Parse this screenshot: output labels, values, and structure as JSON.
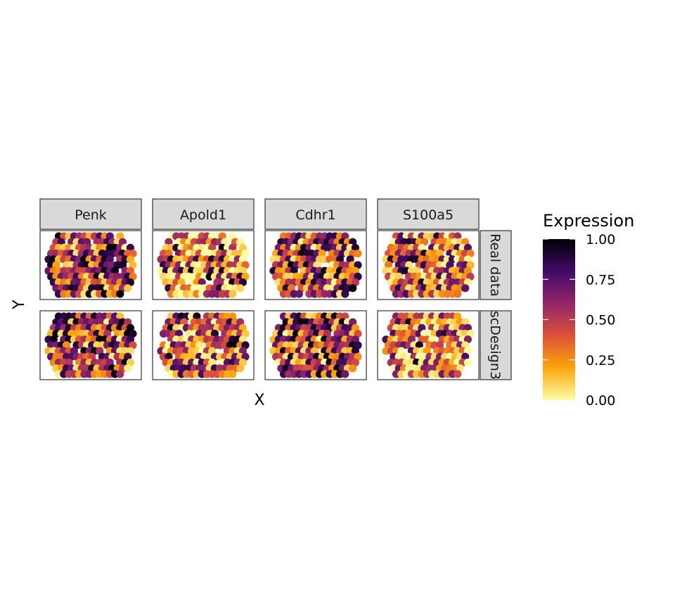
{
  "chart_data": {
    "type": "scatter",
    "facet_columns": [
      "Penk",
      "Apold1",
      "Cdhr1",
      "S100a5"
    ],
    "facet_rows": [
      "Real data",
      "scDesign3"
    ],
    "xlabel": "X",
    "ylabel": "Y",
    "legend": {
      "title": "Expression",
      "position": "right",
      "ticks": [
        "1.00",
        "0.75",
        "0.50",
        "0.25",
        "0.00"
      ],
      "range": [
        0,
        1
      ],
      "palette": [
        "#fcffa4",
        "#fca50a",
        "#dd513a",
        "#932667",
        "#420a68",
        "#000004"
      ]
    },
    "spot_grid": {
      "columns": 17,
      "rows": 11,
      "note": "values per panel are approximate, estimated from colour"
    },
    "grid": false,
    "axis_ticks": false
  }
}
